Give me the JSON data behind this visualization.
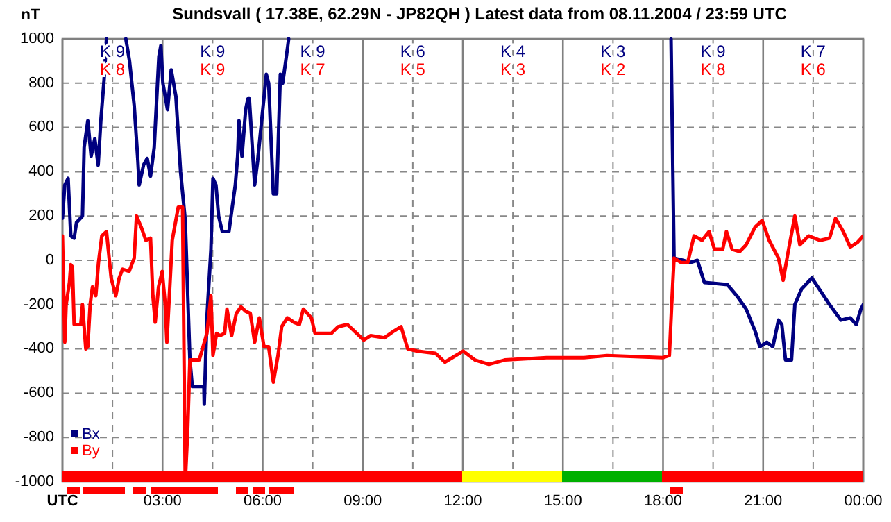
{
  "chart_data": {
    "type": "line",
    "title": "Sundsvall ( 17.38E, 62.29N - JP82QH ) Latest data from 08.11.2004 / 23:59 UTC",
    "ylabel": "nT",
    "xlim": [
      0,
      24
    ],
    "ylim": [
      -1000,
      1000
    ],
    "xticks": [
      {
        "value": 0,
        "label": "UTC"
      },
      {
        "value": 1.5,
        "label": null
      },
      {
        "value": 3,
        "label": "03:00"
      },
      {
        "value": 4.5,
        "label": null
      },
      {
        "value": 6,
        "label": "06:00"
      },
      {
        "value": 7.5,
        "label": null
      },
      {
        "value": 9,
        "label": "09:00"
      },
      {
        "value": 10.5,
        "label": null
      },
      {
        "value": 12,
        "label": "12:00"
      },
      {
        "value": 13.5,
        "label": null
      },
      {
        "value": 15,
        "label": "15:00"
      },
      {
        "value": 16.5,
        "label": null
      },
      {
        "value": 18,
        "label": "18:00"
      },
      {
        "value": 19.5,
        "label": null
      },
      {
        "value": 21,
        "label": "21:00"
      },
      {
        "value": 22.5,
        "label": null
      },
      {
        "value": 24,
        "label": "00:00"
      }
    ],
    "yticks": [
      -1000,
      -800,
      -600,
      -400,
      -200,
      0,
      200,
      400,
      600,
      800,
      1000
    ],
    "grid": true,
    "legend": "bottom left",
    "line_style": "solid",
    "series": [
      {
        "name": "Bx",
        "color": "#000080",
        "x": [
          0,
          0.07,
          0.17,
          0.25,
          0.35,
          0.42,
          0.6,
          0.65,
          0.76,
          0.86,
          0.97,
          1.07,
          1.15,
          1.25,
          1.32,
          1.4,
          1.9,
          2.01,
          2.15,
          2.26,
          2.3,
          2.43,
          2.54,
          2.64,
          2.75,
          2.89,
          2.95,
          3.01,
          3.15,
          3.26,
          3.4,
          3.54,
          3.68,
          3.82,
          3.89,
          4.24,
          4.25,
          4.33,
          4.45,
          4.51,
          4.6,
          4.68,
          4.79,
          4.99,
          5.07,
          5.18,
          5.25,
          5.29,
          5.38,
          5.49,
          5.56,
          5.6,
          5.76,
          5.85,
          5.97,
          6.11,
          6.18,
          6.32,
          6.42,
          6.53,
          6.6,
          6.71,
          6.78,
          6.8,
          18.24,
          18.33,
          18.6,
          18.82,
          19.03,
          19.24,
          19.93,
          20.21,
          20.49,
          20.76,
          20.9,
          21.11,
          21.29,
          21.46,
          21.56,
          21.67,
          21.85,
          21.95,
          22.15,
          22.46,
          22.64,
          22.99,
          23.33,
          23.61,
          23.79,
          23.93,
          24
        ],
        "values": [
          190,
          340,
          370,
          110,
          100,
          170,
          200,
          510,
          630,
          470,
          550,
          430,
          630,
          820,
          1000,
          null,
          1000,
          900,
          700,
          450,
          340,
          430,
          460,
          380,
          510,
          920,
          970,
          800,
          680,
          860,
          740,
          400,
          180,
          -450,
          -570,
          -570,
          -650,
          -260,
          50,
          370,
          340,
          200,
          130,
          130,
          220,
          340,
          470,
          630,
          470,
          680,
          730,
          730,
          340,
          450,
          630,
          840,
          800,
          300,
          300,
          840,
          800,
          920,
          1000,
          null,
          1000,
          10,
          0,
          -10,
          0,
          -100,
          -110,
          -160,
          -220,
          -320,
          -390,
          -370,
          -390,
          -270,
          -290,
          -450,
          -450,
          -200,
          -130,
          -80,
          -120,
          -200,
          -270,
          -260,
          -290,
          -220,
          -200
        ]
      },
      {
        "name": "By",
        "color": "#ff0000",
        "x": [
          0,
          0.02,
          0.07,
          0.11,
          0.21,
          0.25,
          0.3,
          0.35,
          0.55,
          0.6,
          0.7,
          0.76,
          0.83,
          0.9,
          1.0,
          1.08,
          1.18,
          1.32,
          1.46,
          1.6,
          1.7,
          1.8,
          2.0,
          2.15,
          2.22,
          2.36,
          2.5,
          2.64,
          2.71,
          2.78,
          2.88,
          2.99,
          3.08,
          3.13,
          3.29,
          3.47,
          3.6,
          3.68,
          3.75,
          3.82,
          4.1,
          4.33,
          4.45,
          4.51,
          4.62,
          4.72,
          4.86,
          4.93,
          5.07,
          5.21,
          5.35,
          5.49,
          5.63,
          5.76,
          5.9,
          6.04,
          6.18,
          6.32,
          6.46,
          6.57,
          6.74,
          6.94,
          7.1,
          7.22,
          7.46,
          7.57,
          7.85,
          8.06,
          8.26,
          8.54,
          8.82,
          9.03,
          9.24,
          9.65,
          9.93,
          10.15,
          10.35,
          10.63,
          11.18,
          11.46,
          12.01,
          12.36,
          12.78,
          13.26,
          14.51,
          15.63,
          16.32,
          17.99,
          18.19,
          18.26,
          18.33,
          18.54,
          18.74,
          18.93,
          19.17,
          19.38,
          19.54,
          19.79,
          19.9,
          20.07,
          20.3,
          20.49,
          20.76,
          20.97,
          21.18,
          21.46,
          21.6,
          21.74,
          21.95,
          22.1,
          22.36,
          22.71,
          22.99,
          23.17,
          23.4,
          23.61,
          23.82,
          24
        ],
        "values": [
          110,
          -30,
          -370,
          -200,
          -100,
          -20,
          -30,
          -290,
          -290,
          -200,
          -400,
          -390,
          -200,
          -120,
          -160,
          -10,
          110,
          130,
          -80,
          -160,
          -80,
          -40,
          -50,
          10,
          200,
          150,
          90,
          100,
          -160,
          -280,
          -120,
          -50,
          -200,
          -370,
          90,
          240,
          240,
          -1000,
          -780,
          -450,
          -450,
          -330,
          -160,
          -430,
          -330,
          -340,
          -330,
          -220,
          -340,
          -240,
          -210,
          -230,
          -240,
          -370,
          -260,
          -390,
          -390,
          -550,
          -430,
          -300,
          -260,
          -280,
          -290,
          -220,
          -260,
          -330,
          -330,
          -330,
          -300,
          -290,
          -330,
          -360,
          -340,
          -350,
          -320,
          -300,
          -400,
          -410,
          -420,
          -460,
          -410,
          -450,
          -470,
          -450,
          -440,
          -440,
          -430,
          -440,
          -430,
          -200,
          10,
          -10,
          -10,
          110,
          90,
          130,
          50,
          50,
          130,
          50,
          40,
          70,
          150,
          180,
          90,
          10,
          -90,
          30,
          200,
          70,
          110,
          90,
          100,
          190,
          130,
          60,
          80,
          110
        ]
      }
    ],
    "annotations": [
      "K 9",
      "K 8",
      "K 9",
      "K 9",
      "K 9",
      "K 7",
      "K 6",
      "K 5",
      "K 4",
      "K 3",
      "K 3",
      "K 2",
      "K 9",
      "K 8",
      "K 7",
      "K 6"
    ]
  }
}
